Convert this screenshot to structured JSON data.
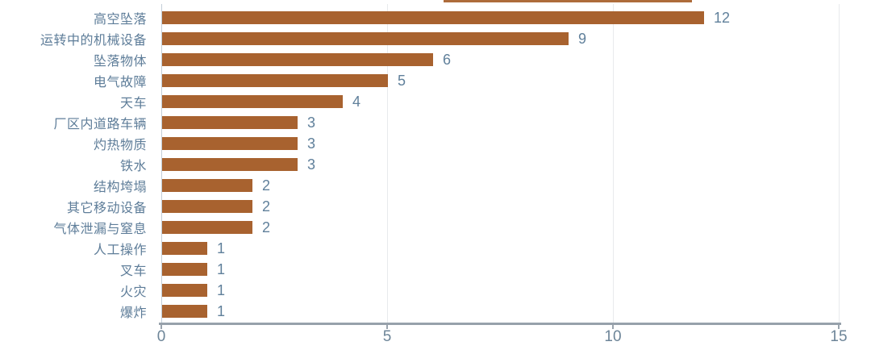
{
  "chart_data": {
    "type": "bar",
    "orientation": "horizontal",
    "title": "",
    "xlabel": "",
    "ylabel": "",
    "categories": [
      "高空坠落",
      "运转中的机械设备",
      "坠落物体",
      "电气故障",
      "天车",
      "厂区内道路车辆",
      "灼热物质",
      "铁水",
      "结构垮塌",
      "其它移动设备",
      "气体泄漏与窒息",
      "人工操作",
      "叉车",
      "火灾",
      "爆炸"
    ],
    "values": [
      12,
      9,
      6,
      5,
      4,
      3,
      3,
      3,
      2,
      2,
      2,
      1,
      1,
      1,
      1
    ],
    "value_labels": [
      "12",
      "9",
      "6",
      "5",
      "4",
      "3",
      "3",
      "3",
      "2",
      "2",
      "2",
      "1",
      "1",
      "1",
      "1"
    ],
    "xlim": [
      0,
      15
    ],
    "x_ticks": [
      0,
      5,
      10,
      15
    ],
    "x_tick_labels": [
      "0",
      "5",
      "10",
      "15"
    ],
    "gridlines_at": [
      5,
      10,
      15
    ],
    "legend": "none",
    "cropped_top_bar_sliver": {
      "x_from_units": 6.25,
      "x_to_units": 11.75
    },
    "colors": {
      "bar": "#A8622F",
      "top_sliver": "#AE6C3B",
      "category_label": "#5E7D99",
      "value_label": "#60809B",
      "tick_label": "#6D8598",
      "axis_line": "#97A1AB",
      "tick_mark": "#9AA4AE",
      "zero_line": "#C3CED8",
      "gridline": "#E8EAEC",
      "background": "#FFFFFF"
    }
  }
}
